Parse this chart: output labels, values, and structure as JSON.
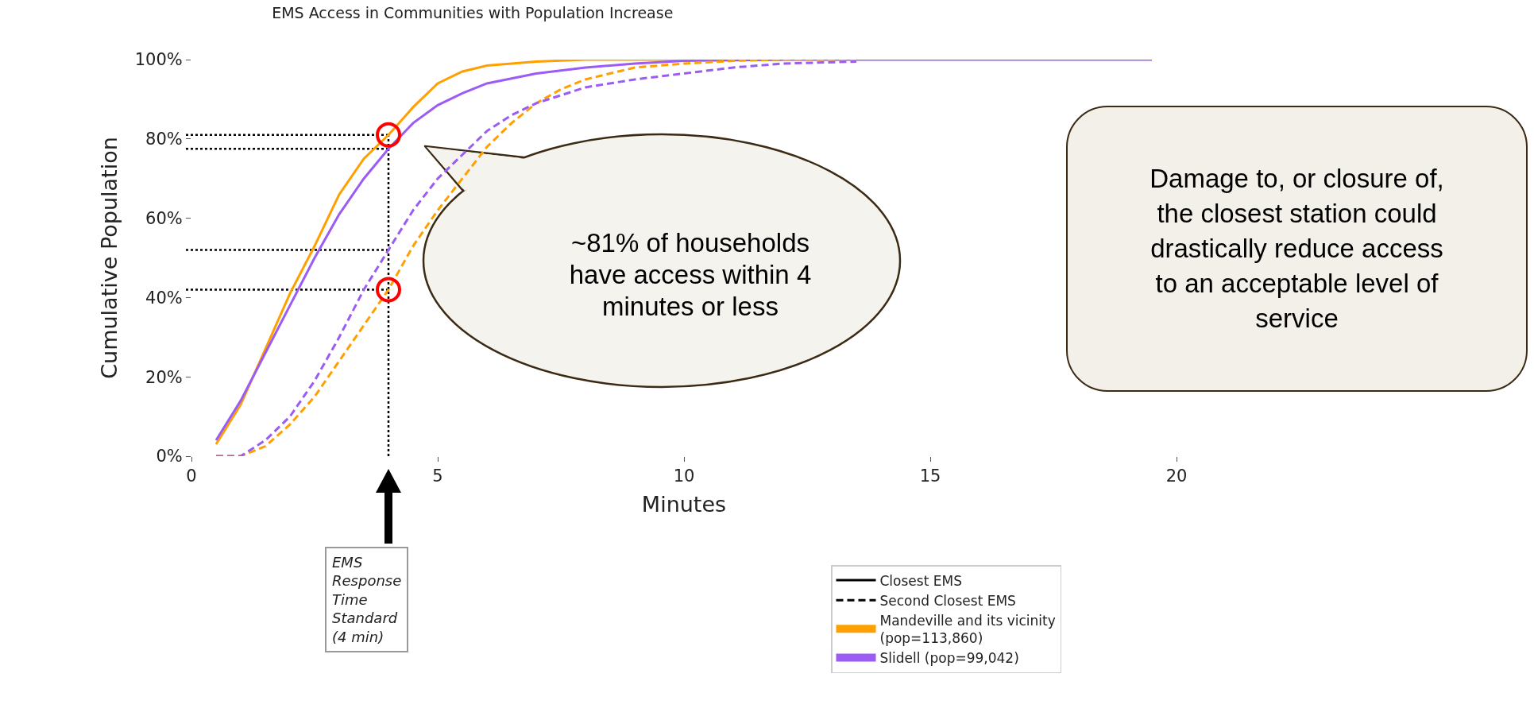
{
  "chart_data": {
    "type": "line",
    "title": "EMS Access in Communities with Population Increase",
    "xlabel": "Minutes",
    "ylabel": "Cumulative Population",
    "xlim": [
      0,
      20
    ],
    "xticks": [
      0,
      5,
      10,
      15,
      20
    ],
    "ylim": [
      0,
      100
    ],
    "yticks": [
      {
        "value": 0,
        "label": "0%"
      },
      {
        "value": 20,
        "label": "20%"
      },
      {
        "value": 40,
        "label": "40%"
      },
      {
        "value": 60,
        "label": "60%"
      },
      {
        "value": 80,
        "label": "80%"
      },
      {
        "value": 100,
        "label": "100%"
      }
    ],
    "grid": false,
    "legend": "bottom",
    "marker": "none",
    "series": [
      {
        "name": "Mandeville and its vicinity (pop=113,860)",
        "color": "#ffa000",
        "line_style": "solid",
        "x": [
          0.5,
          1,
          1.5,
          2,
          2.5,
          3,
          3.5,
          4,
          4.5,
          5,
          5.5,
          6,
          7,
          8,
          9,
          10,
          12
        ],
        "values": [
          3,
          13,
          27,
          41,
          53,
          66,
          75,
          81,
          88,
          94,
          97,
          98.5,
          99.5,
          100,
          100,
          100,
          100
        ]
      },
      {
        "name": "Slidell (pop=99,042)",
        "color": "#9b5cf6",
        "line_style": "solid",
        "x": [
          0.5,
          1,
          1.5,
          2,
          2.5,
          3,
          3.5,
          4,
          4.5,
          5,
          5.5,
          6,
          7,
          8,
          9,
          10,
          12,
          14,
          16,
          19.5
        ],
        "values": [
          4,
          14,
          26,
          38,
          50,
          61,
          70,
          77.5,
          84,
          88.5,
          91.5,
          94,
          96.5,
          98,
          99,
          99.7,
          100,
          100,
          100,
          100
        ]
      },
      {
        "color": "#ffa000",
        "line_style": "dashed",
        "x": [
          0.5,
          1,
          1.5,
          2,
          2.5,
          3,
          3.5,
          4,
          4.5,
          5,
          5.5,
          6,
          6.5,
          7,
          7.5,
          8,
          9,
          10,
          11,
          12,
          13.5
        ],
        "values": [
          0,
          0,
          2.5,
          8,
          15,
          24,
          33,
          42,
          53,
          62,
          70,
          78,
          84,
          89,
          92.5,
          95,
          98,
          99,
          99.7,
          100,
          100
        ]
      },
      {
        "color": "#9b5cf6",
        "line_style": "dashed",
        "x": [
          0.5,
          1,
          1.5,
          2,
          2.5,
          3,
          3.5,
          4,
          4.5,
          5,
          5.5,
          6,
          6.5,
          7,
          7.5,
          8,
          9,
          10,
          11,
          12,
          13.5
        ],
        "values": [
          0,
          0,
          4,
          10,
          19,
          30,
          42,
          52,
          62,
          70,
          76,
          82,
          86,
          89,
          91,
          93,
          95,
          96.5,
          98,
          99,
          99.5
        ]
      },
      {
        "type": "scatter",
        "marker": "circle",
        "color": "#ff0000",
        "x": [
          4,
          4
        ],
        "values": [
          81,
          42
        ]
      }
    ],
    "ref_lines": [
      {
        "axis": "x",
        "value": 4,
        "color": "#000000",
        "line_style": "dotted"
      },
      {
        "axis": "y",
        "value": 81,
        "color": "#000000",
        "line_style": "dotted"
      },
      {
        "axis": "y",
        "value": 77.5,
        "color": "#000000",
        "line_style": "dotted"
      },
      {
        "axis": "y",
        "value": 52,
        "color": "#000000",
        "line_style": "dotted"
      },
      {
        "axis": "y",
        "value": 42,
        "color": "#000000",
        "line_style": "dotted"
      }
    ],
    "annotations": [
      "~81% of households have access within 4 minutes or less",
      "EMS Response Time Standard (4 min)",
      "Damage to, or closure of, the closest station could drastically reduce access to an acceptable level of service",
      "Closest EMS",
      "Second Closest EMS"
    ]
  }
}
